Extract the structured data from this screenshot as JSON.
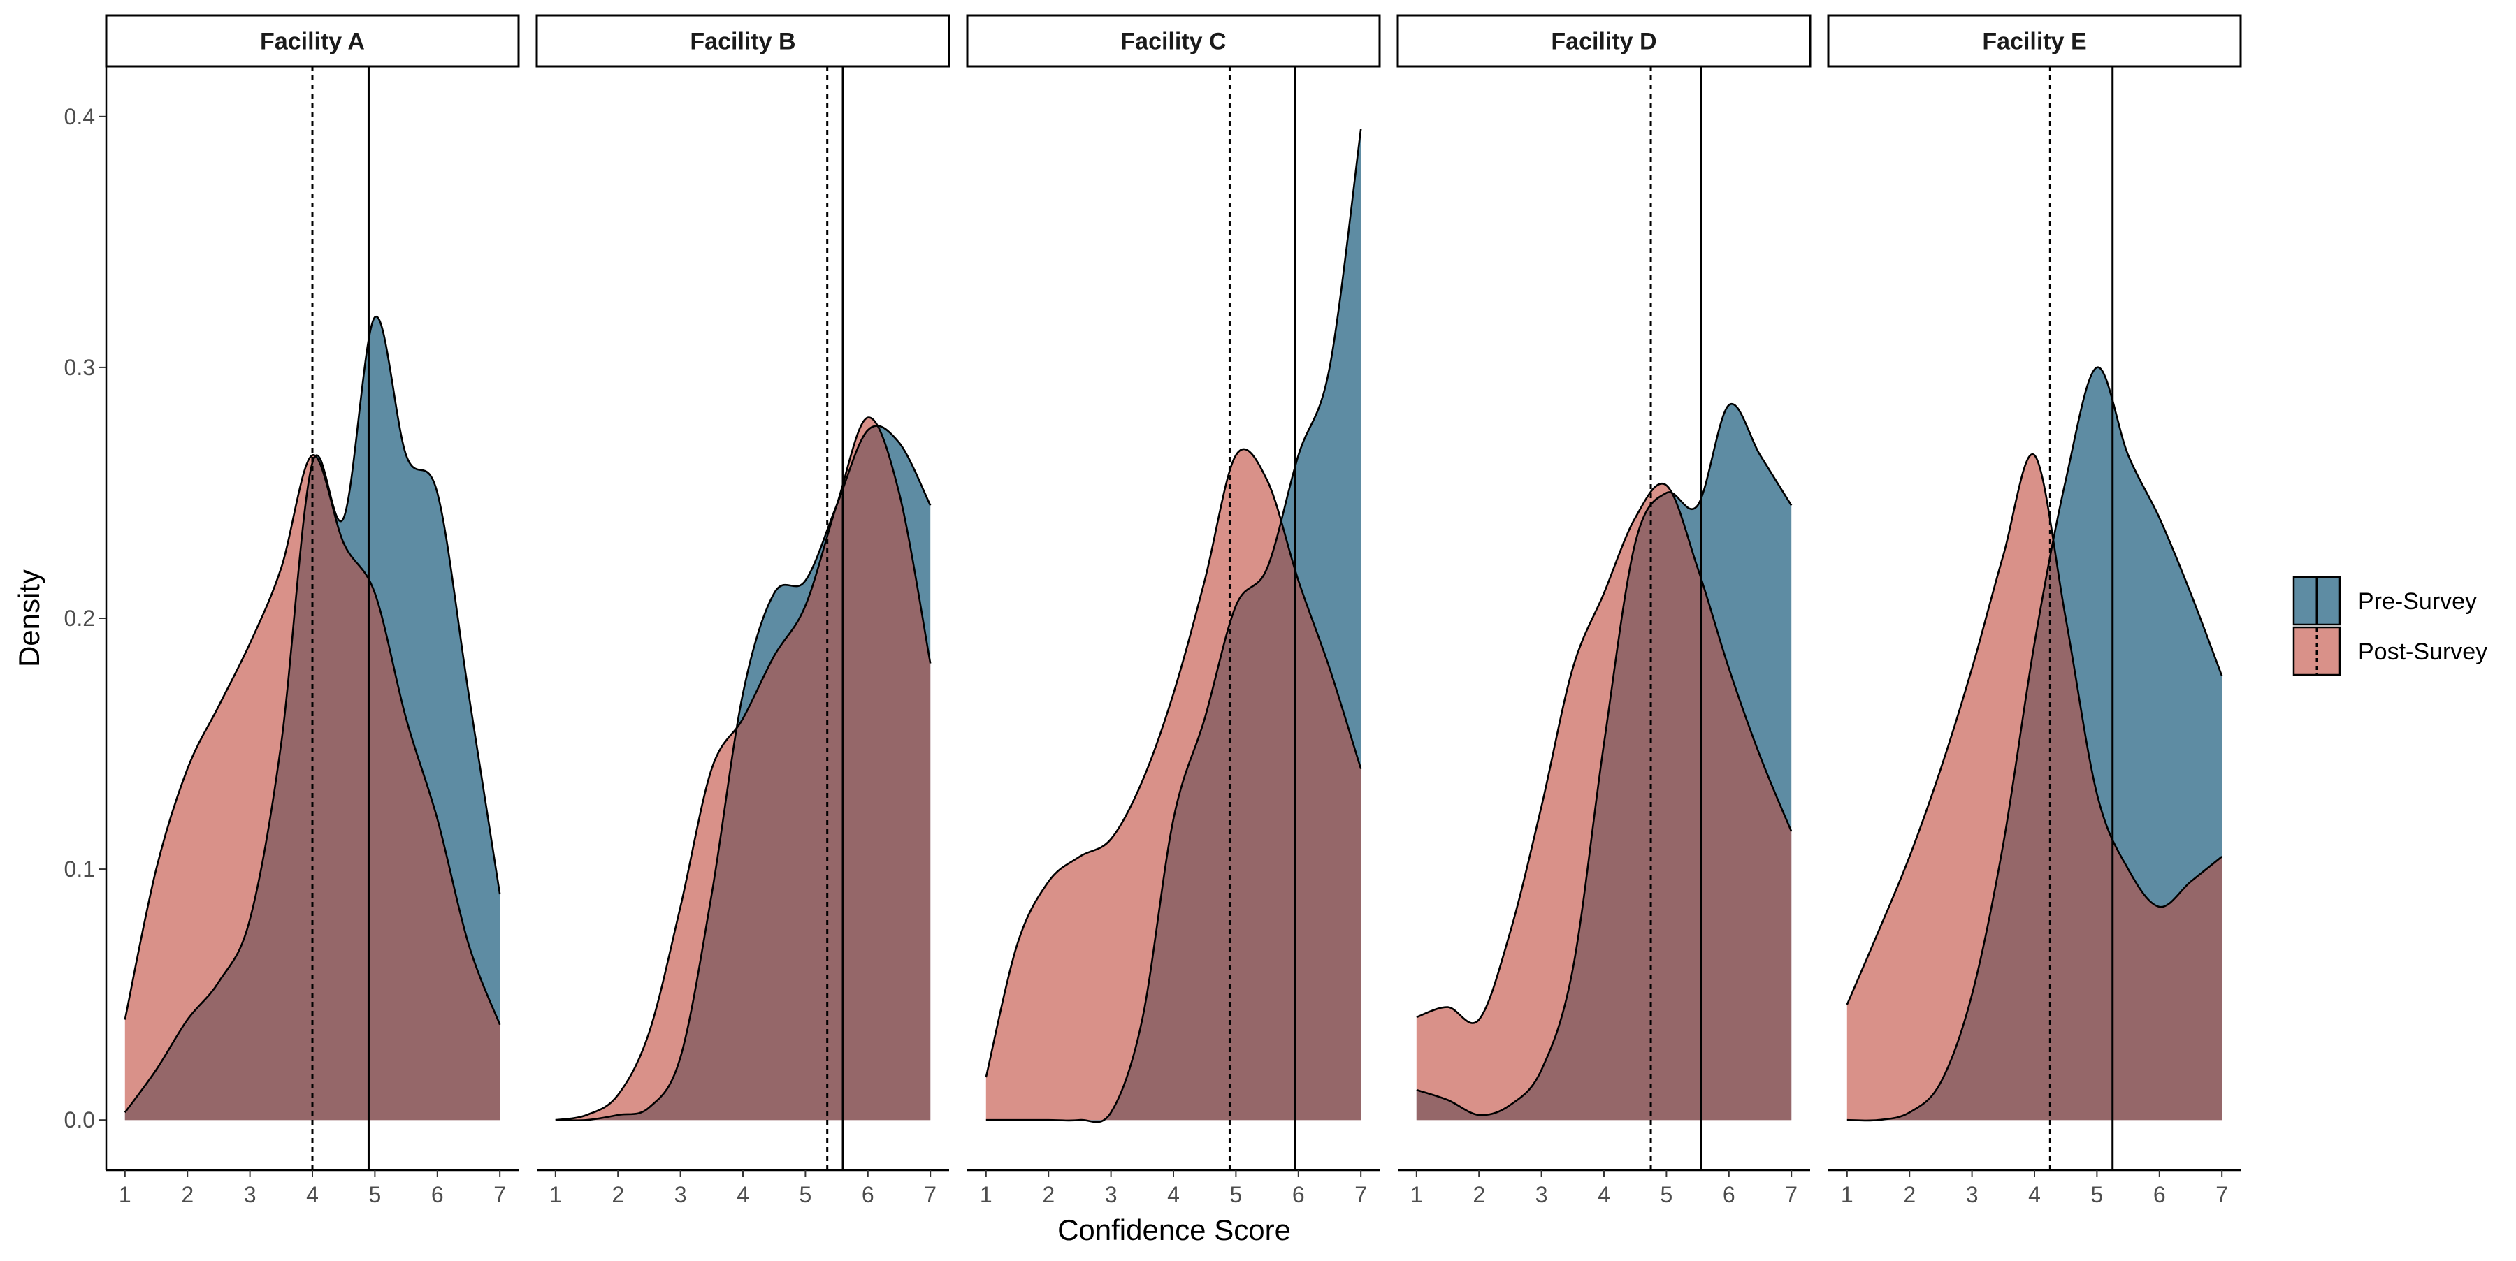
{
  "chart_data": {
    "type": "area",
    "xlabel": "Confidence Score",
    "ylabel": "Density",
    "xlim": [
      0.7,
      7.3
    ],
    "ylim": [
      -0.02,
      0.42
    ],
    "x_ticks": [
      1,
      2,
      3,
      4,
      5,
      6,
      7
    ],
    "y_ticks": [
      0.0,
      0.1,
      0.2,
      0.3,
      0.4
    ],
    "y_tick_labels": [
      "0.0",
      "0.1",
      "0.2",
      "0.3",
      "0.4"
    ],
    "grid": false,
    "legend_position": "right",
    "legend_entries": [
      {
        "label": "Pre-Survey",
        "color": "#5e8ca3",
        "line_style": "solid"
      },
      {
        "label": "Post-Survey",
        "color": "#d99189",
        "line_style": "dashed"
      }
    ],
    "x_grid": [
      1,
      1.5,
      2,
      2.5,
      3,
      3.5,
      4,
      4.5,
      5,
      5.5,
      6,
      6.5,
      7
    ],
    "panels": [
      {
        "title": "Facility A",
        "pre_mean": 4.9,
        "post_mean": 4.0,
        "pre": [
          0.003,
          0.02,
          0.04,
          0.055,
          0.08,
          0.15,
          0.262,
          0.24,
          0.32,
          0.265,
          0.25,
          0.17,
          0.09
        ],
        "post": [
          0.04,
          0.1,
          0.14,
          0.165,
          0.19,
          0.22,
          0.265,
          0.23,
          0.21,
          0.16,
          0.12,
          0.07,
          0.038
        ]
      },
      {
        "title": "Facility B",
        "pre": [
          0.0,
          0.0,
          0.002,
          0.005,
          0.025,
          0.09,
          0.17,
          0.21,
          0.215,
          0.245,
          0.275,
          0.27,
          0.245
        ],
        "post": [
          0.0,
          0.002,
          0.01,
          0.035,
          0.085,
          0.14,
          0.16,
          0.185,
          0.205,
          0.245,
          0.28,
          0.25,
          0.182
        ],
        "pre_mean": 5.6,
        "post_mean": 5.35
      },
      {
        "title": "Facility C",
        "pre": [
          0.0,
          0.0,
          0.0,
          0.0,
          0.003,
          0.04,
          0.12,
          0.16,
          0.205,
          0.22,
          0.265,
          0.3,
          0.395
        ],
        "post": [
          0.017,
          0.07,
          0.095,
          0.105,
          0.112,
          0.135,
          0.17,
          0.215,
          0.265,
          0.255,
          0.215,
          0.18,
          0.14
        ],
        "pre_mean": 5.95,
        "post_mean": 4.9
      },
      {
        "title": "Facility D",
        "pre": [
          0.012,
          0.008,
          0.002,
          0.006,
          0.02,
          0.06,
          0.15,
          0.23,
          0.25,
          0.245,
          0.285,
          0.265,
          0.245
        ],
        "post": [
          0.041,
          0.045,
          0.04,
          0.075,
          0.125,
          0.18,
          0.21,
          0.24,
          0.253,
          0.22,
          0.18,
          0.145,
          0.115
        ],
        "pre_mean": 5.55,
        "post_mean": 4.75
      },
      {
        "title": "Facility E",
        "pre": [
          0.0,
          0.0,
          0.003,
          0.015,
          0.05,
          0.11,
          0.19,
          0.255,
          0.3,
          0.265,
          0.24,
          0.21,
          0.177
        ],
        "post": [
          0.046,
          0.075,
          0.105,
          0.14,
          0.18,
          0.225,
          0.265,
          0.2,
          0.13,
          0.1,
          0.085,
          0.095,
          0.105
        ],
        "pre_mean": 5.25,
        "post_mean": 4.25
      }
    ]
  },
  "colors": {
    "pre_fill": "#5e8ca3",
    "post_fill": "#d99189",
    "overlap_fill": "#956769",
    "outline": "#000000",
    "axis_text": "#4d4d4d",
    "strip_fill": "#ffffff"
  }
}
